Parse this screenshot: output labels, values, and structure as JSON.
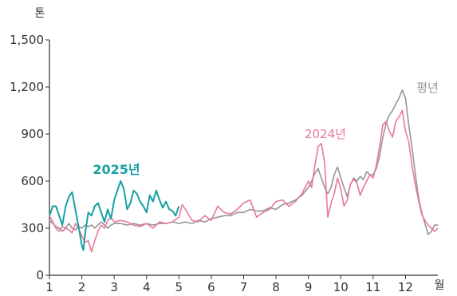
{
  "chart_data": {
    "type": "line",
    "y_unit": "톤",
    "x_unit": "월",
    "xlim": [
      1,
      13
    ],
    "ylim": [
      0,
      1500
    ],
    "y_ticks": [
      "0",
      "300",
      "600",
      "900",
      "1,200",
      "1,500"
    ],
    "y_tick_values": [
      0,
      300,
      600,
      900,
      1200,
      1500
    ],
    "x_ticks": [
      "1",
      "2",
      "3",
      "4",
      "5",
      "6",
      "7",
      "8",
      "9",
      "10",
      "11",
      "12"
    ],
    "x_tick_values": [
      1,
      2,
      3,
      4,
      5,
      6,
      7,
      8,
      9,
      10,
      11,
      12
    ],
    "grid": false,
    "series": [
      {
        "name": "평년",
        "color": "#959595",
        "points": [
          [
            1.0,
            350
          ],
          [
            1.1,
            330
          ],
          [
            1.2,
            310
          ],
          [
            1.3,
            300
          ],
          [
            1.4,
            280
          ],
          [
            1.5,
            300
          ],
          [
            1.6,
            330
          ],
          [
            1.7,
            300
          ],
          [
            1.8,
            290
          ],
          [
            1.9,
            310
          ],
          [
            2.0,
            300
          ],
          [
            2.1,
            320
          ],
          [
            2.2,
            310
          ],
          [
            2.3,
            320
          ],
          [
            2.4,
            300
          ],
          [
            2.5,
            320
          ],
          [
            2.6,
            340
          ],
          [
            2.7,
            320
          ],
          [
            2.8,
            300
          ],
          [
            2.9,
            320
          ],
          [
            3.0,
            330
          ],
          [
            3.2,
            330
          ],
          [
            3.4,
            320
          ],
          [
            3.6,
            330
          ],
          [
            3.8,
            320
          ],
          [
            4.0,
            330
          ],
          [
            4.2,
            320
          ],
          [
            4.4,
            330
          ],
          [
            4.6,
            330
          ],
          [
            4.8,
            340
          ],
          [
            5.0,
            330
          ],
          [
            5.2,
            340
          ],
          [
            5.4,
            330
          ],
          [
            5.6,
            350
          ],
          [
            5.8,
            340
          ],
          [
            6.0,
            360
          ],
          [
            6.2,
            370
          ],
          [
            6.4,
            380
          ],
          [
            6.6,
            380
          ],
          [
            6.8,
            400
          ],
          [
            7.0,
            400
          ],
          [
            7.2,
            420
          ],
          [
            7.4,
            410
          ],
          [
            7.6,
            410
          ],
          [
            7.8,
            430
          ],
          [
            8.0,
            420
          ],
          [
            8.2,
            450
          ],
          [
            8.4,
            460
          ],
          [
            8.6,
            480
          ],
          [
            8.8,
            510
          ],
          [
            9.0,
            560
          ],
          [
            9.1,
            600
          ],
          [
            9.2,
            650
          ],
          [
            9.3,
            680
          ],
          [
            9.4,
            620
          ],
          [
            9.5,
            560
          ],
          [
            9.6,
            520
          ],
          [
            9.7,
            560
          ],
          [
            9.8,
            640
          ],
          [
            9.9,
            690
          ],
          [
            10.0,
            620
          ],
          [
            10.1,
            560
          ],
          [
            10.2,
            500
          ],
          [
            10.3,
            580
          ],
          [
            10.4,
            620
          ],
          [
            10.5,
            600
          ],
          [
            10.6,
            630
          ],
          [
            10.7,
            610
          ],
          [
            10.8,
            660
          ],
          [
            10.9,
            640
          ],
          [
            11.0,
            640
          ],
          [
            11.1,
            680
          ],
          [
            11.2,
            760
          ],
          [
            11.3,
            880
          ],
          [
            11.4,
            970
          ],
          [
            11.5,
            1020
          ],
          [
            11.6,
            1050
          ],
          [
            11.7,
            1090
          ],
          [
            11.8,
            1130
          ],
          [
            11.9,
            1180
          ],
          [
            12.0,
            1130
          ],
          [
            12.1,
            960
          ],
          [
            12.2,
            820
          ],
          [
            12.3,
            650
          ],
          [
            12.4,
            500
          ],
          [
            12.5,
            400
          ],
          [
            12.6,
            330
          ],
          [
            12.7,
            260
          ],
          [
            12.8,
            280
          ],
          [
            12.9,
            320
          ],
          [
            13.0,
            320
          ]
        ]
      },
      {
        "name": "2024년",
        "color": "#e87a98",
        "points": [
          [
            1.0,
            380
          ],
          [
            1.1,
            340
          ],
          [
            1.2,
            300
          ],
          [
            1.3,
            280
          ],
          [
            1.4,
            310
          ],
          [
            1.5,
            300
          ],
          [
            1.6,
            290
          ],
          [
            1.7,
            270
          ],
          [
            1.8,
            330
          ],
          [
            1.9,
            300
          ],
          [
            2.0,
            250
          ],
          [
            2.1,
            210
          ],
          [
            2.2,
            220
          ],
          [
            2.3,
            150
          ],
          [
            2.4,
            220
          ],
          [
            2.5,
            280
          ],
          [
            2.6,
            320
          ],
          [
            2.7,
            300
          ],
          [
            2.8,
            350
          ],
          [
            2.9,
            370
          ],
          [
            3.0,
            340
          ],
          [
            3.2,
            350
          ],
          [
            3.4,
            340
          ],
          [
            3.6,
            320
          ],
          [
            3.8,
            310
          ],
          [
            4.0,
            330
          ],
          [
            4.2,
            300
          ],
          [
            4.4,
            340
          ],
          [
            4.6,
            330
          ],
          [
            4.8,
            340
          ],
          [
            5.0,
            370
          ],
          [
            5.1,
            450
          ],
          [
            5.2,
            420
          ],
          [
            5.4,
            350
          ],
          [
            5.6,
            340
          ],
          [
            5.8,
            380
          ],
          [
            6.0,
            350
          ],
          [
            6.2,
            440
          ],
          [
            6.4,
            400
          ],
          [
            6.6,
            390
          ],
          [
            6.8,
            420
          ],
          [
            7.0,
            460
          ],
          [
            7.2,
            480
          ],
          [
            7.4,
            370
          ],
          [
            7.6,
            400
          ],
          [
            7.8,
            420
          ],
          [
            8.0,
            470
          ],
          [
            8.2,
            480
          ],
          [
            8.4,
            440
          ],
          [
            8.6,
            470
          ],
          [
            8.8,
            520
          ],
          [
            9.0,
            600
          ],
          [
            9.1,
            560
          ],
          [
            9.2,
            700
          ],
          [
            9.3,
            820
          ],
          [
            9.4,
            840
          ],
          [
            9.5,
            720
          ],
          [
            9.6,
            370
          ],
          [
            9.7,
            460
          ],
          [
            9.8,
            520
          ],
          [
            9.9,
            620
          ],
          [
            10.0,
            550
          ],
          [
            10.1,
            440
          ],
          [
            10.2,
            480
          ],
          [
            10.3,
            580
          ],
          [
            10.4,
            610
          ],
          [
            10.5,
            590
          ],
          [
            10.6,
            510
          ],
          [
            10.7,
            560
          ],
          [
            10.8,
            600
          ],
          [
            10.9,
            640
          ],
          [
            11.0,
            620
          ],
          [
            11.1,
            700
          ],
          [
            11.2,
            820
          ],
          [
            11.3,
            960
          ],
          [
            11.4,
            980
          ],
          [
            11.5,
            920
          ],
          [
            11.6,
            880
          ],
          [
            11.7,
            980
          ],
          [
            11.8,
            1010
          ],
          [
            11.9,
            1050
          ],
          [
            12.0,
            920
          ],
          [
            12.1,
            850
          ],
          [
            12.2,
            700
          ],
          [
            12.3,
            580
          ],
          [
            12.4,
            480
          ],
          [
            12.5,
            390
          ],
          [
            12.6,
            350
          ],
          [
            12.7,
            320
          ],
          [
            12.8,
            300
          ],
          [
            12.9,
            280
          ],
          [
            13.0,
            300
          ]
        ]
      },
      {
        "name": "2025년",
        "color": "#17a0a1",
        "points": [
          [
            1.0,
            380
          ],
          [
            1.1,
            440
          ],
          [
            1.2,
            440
          ],
          [
            1.3,
            380
          ],
          [
            1.4,
            320
          ],
          [
            1.5,
            440
          ],
          [
            1.6,
            500
          ],
          [
            1.7,
            530
          ],
          [
            1.8,
            420
          ],
          [
            1.9,
            310
          ],
          [
            2.0,
            190
          ],
          [
            2.05,
            160
          ],
          [
            2.1,
            260
          ],
          [
            2.2,
            400
          ],
          [
            2.3,
            380
          ],
          [
            2.4,
            440
          ],
          [
            2.5,
            460
          ],
          [
            2.6,
            400
          ],
          [
            2.7,
            340
          ],
          [
            2.8,
            420
          ],
          [
            2.9,
            360
          ],
          [
            3.0,
            480
          ],
          [
            3.1,
            540
          ],
          [
            3.2,
            600
          ],
          [
            3.3,
            550
          ],
          [
            3.4,
            420
          ],
          [
            3.5,
            460
          ],
          [
            3.6,
            540
          ],
          [
            3.7,
            520
          ],
          [
            3.8,
            470
          ],
          [
            3.9,
            440
          ],
          [
            4.0,
            400
          ],
          [
            4.1,
            510
          ],
          [
            4.2,
            470
          ],
          [
            4.3,
            540
          ],
          [
            4.4,
            480
          ],
          [
            4.5,
            430
          ],
          [
            4.6,
            470
          ],
          [
            4.7,
            420
          ],
          [
            4.8,
            410
          ],
          [
            4.9,
            380
          ],
          [
            5.0,
            440
          ]
        ]
      }
    ]
  }
}
